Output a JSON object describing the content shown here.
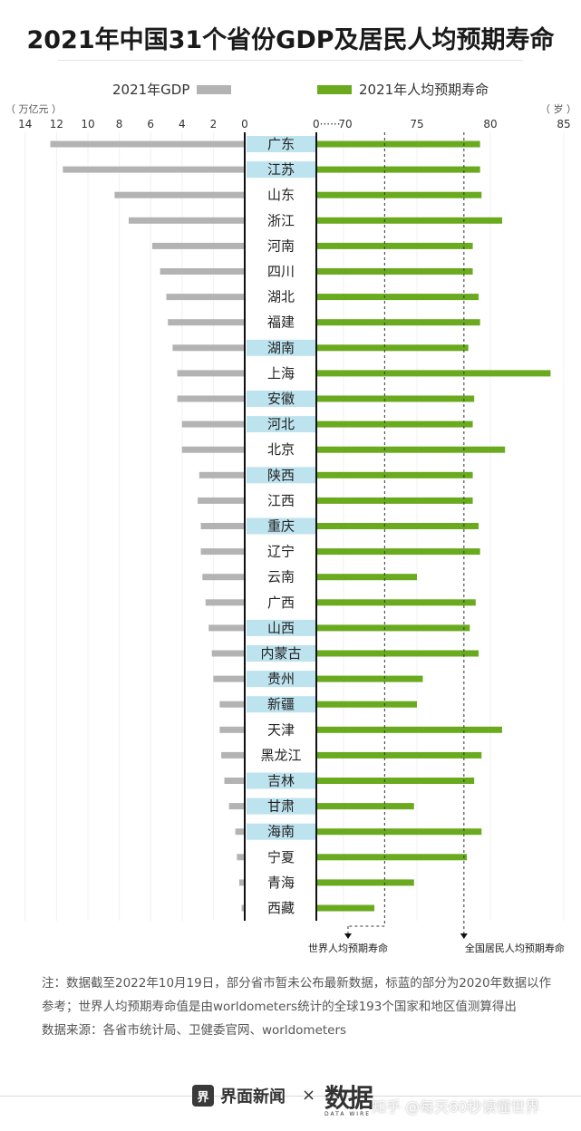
{
  "title": "2021年中国31个省份GDP及居民人均预期寿命",
  "legend": {
    "gdp_label": "2021年GDP",
    "life_label": "2021年人均预期寿命",
    "gdp_color": "#b3b3b3",
    "life_color": "#6aaa1e",
    "highlight_color": "#bde3ef"
  },
  "chart_data": {
    "type": "bar",
    "title": "2021年中国31个省份GDP及居民人均预期寿命",
    "categories": [
      "广东",
      "江苏",
      "山东",
      "浙江",
      "河南",
      "四川",
      "湖北",
      "福建",
      "湖南",
      "上海",
      "安徽",
      "河北",
      "北京",
      "陕西",
      "江西",
      "重庆",
      "辽宁",
      "云南",
      "广西",
      "山西",
      "内蒙古",
      "贵州",
      "新疆",
      "天津",
      "黑龙江",
      "吉林",
      "甘肃",
      "海南",
      "宁夏",
      "青海",
      "西藏"
    ],
    "highlighted": [
      "广东",
      "江苏",
      "湖南",
      "安徽",
      "河北",
      "陕西",
      "重庆",
      "山西",
      "内蒙古",
      "贵州",
      "新疆",
      "吉林",
      "甘肃",
      "海南"
    ],
    "series": [
      {
        "name": "2021年GDP",
        "unit": "万亿元",
        "values": [
          12.4,
          11.6,
          8.3,
          7.4,
          5.9,
          5.4,
          5.0,
          4.9,
          4.6,
          4.3,
          4.3,
          4.0,
          4.0,
          2.9,
          3.0,
          2.8,
          2.8,
          2.7,
          2.5,
          2.3,
          2.1,
          2.0,
          1.6,
          1.6,
          1.5,
          1.3,
          1.0,
          0.6,
          0.5,
          0.35,
          0.2
        ]
      },
      {
        "name": "2021年人均预期寿命",
        "unit": "岁",
        "values": [
          79.3,
          79.3,
          79.4,
          80.8,
          78.8,
          78.8,
          79.2,
          79.3,
          78.5,
          84.1,
          78.9,
          78.8,
          81.0,
          78.8,
          78.8,
          79.2,
          79.3,
          75.0,
          79.0,
          78.6,
          79.2,
          75.4,
          75.0,
          80.8,
          79.4,
          78.9,
          74.8,
          79.4,
          78.4,
          74.8,
          72.1
        ]
      }
    ],
    "gdp_axis": {
      "unit_label": "（ 万亿元 ）",
      "ticks": [
        "14",
        "12",
        "10",
        "8",
        "6",
        "4",
        "2",
        "0"
      ],
      "range": [
        0,
        14
      ]
    },
    "life_axis": {
      "unit_label": "（ 岁 ）",
      "ticks": [
        "70",
        "75",
        "80",
        "85"
      ],
      "range": [
        70,
        85
      ],
      "break_label": "0······"
    },
    "reference_lines": [
      {
        "label": "世界人均预期寿命",
        "value": 72.8
      },
      {
        "label": "全国居民人均预期寿命",
        "value": 78.2
      }
    ]
  },
  "notes": {
    "note": "注：数据截至2022年10月19日，部分省市暂未公布最新数据，标蓝的部分为2020年数据以作参考；世界人均预期寿命值是由worldometers统计的全球193个国家和地区值测算得出",
    "source": "数据来源：各省市统计局、卫健委官网、worldometers"
  },
  "footer": {
    "brand1_icon": "界",
    "brand1": "界面新闻",
    "times": "×",
    "brand2": "数据",
    "brand2_sub": "DATA WIRE",
    "watermark": "知乎 @每天60秒读懂世界"
  }
}
